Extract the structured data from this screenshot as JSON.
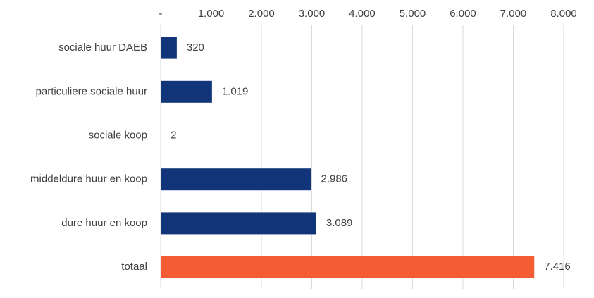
{
  "chart_data": {
    "type": "bar",
    "orientation": "horizontal",
    "title": "",
    "xlabel": "",
    "ylabel": "",
    "categories": [
      "sociale huur DAEB",
      "particuliere sociale huur",
      "sociale koop",
      "middeldure huur en koop",
      "dure huur en koop",
      "totaal"
    ],
    "values": [
      320,
      1019,
      2,
      2986,
      3089,
      7416
    ],
    "value_labels": [
      "320",
      "1.019",
      "2",
      "2.986",
      "3.089",
      "7.416"
    ],
    "bar_colors": [
      "#12357a",
      "#12357a",
      "#12357a",
      "#12357a",
      "#12357a",
      "#f45d33"
    ],
    "xlim": [
      0,
      8000
    ],
    "x_ticks": [
      0,
      1000,
      2000,
      3000,
      4000,
      5000,
      6000,
      7000,
      8000
    ],
    "x_tick_labels": [
      "-",
      "1.000",
      "2.000",
      "3.000",
      "4.000",
      "5.000",
      "6.000",
      "7.000",
      "8.000"
    ],
    "x_axis_position": "top",
    "grid": true,
    "legend": "none"
  }
}
